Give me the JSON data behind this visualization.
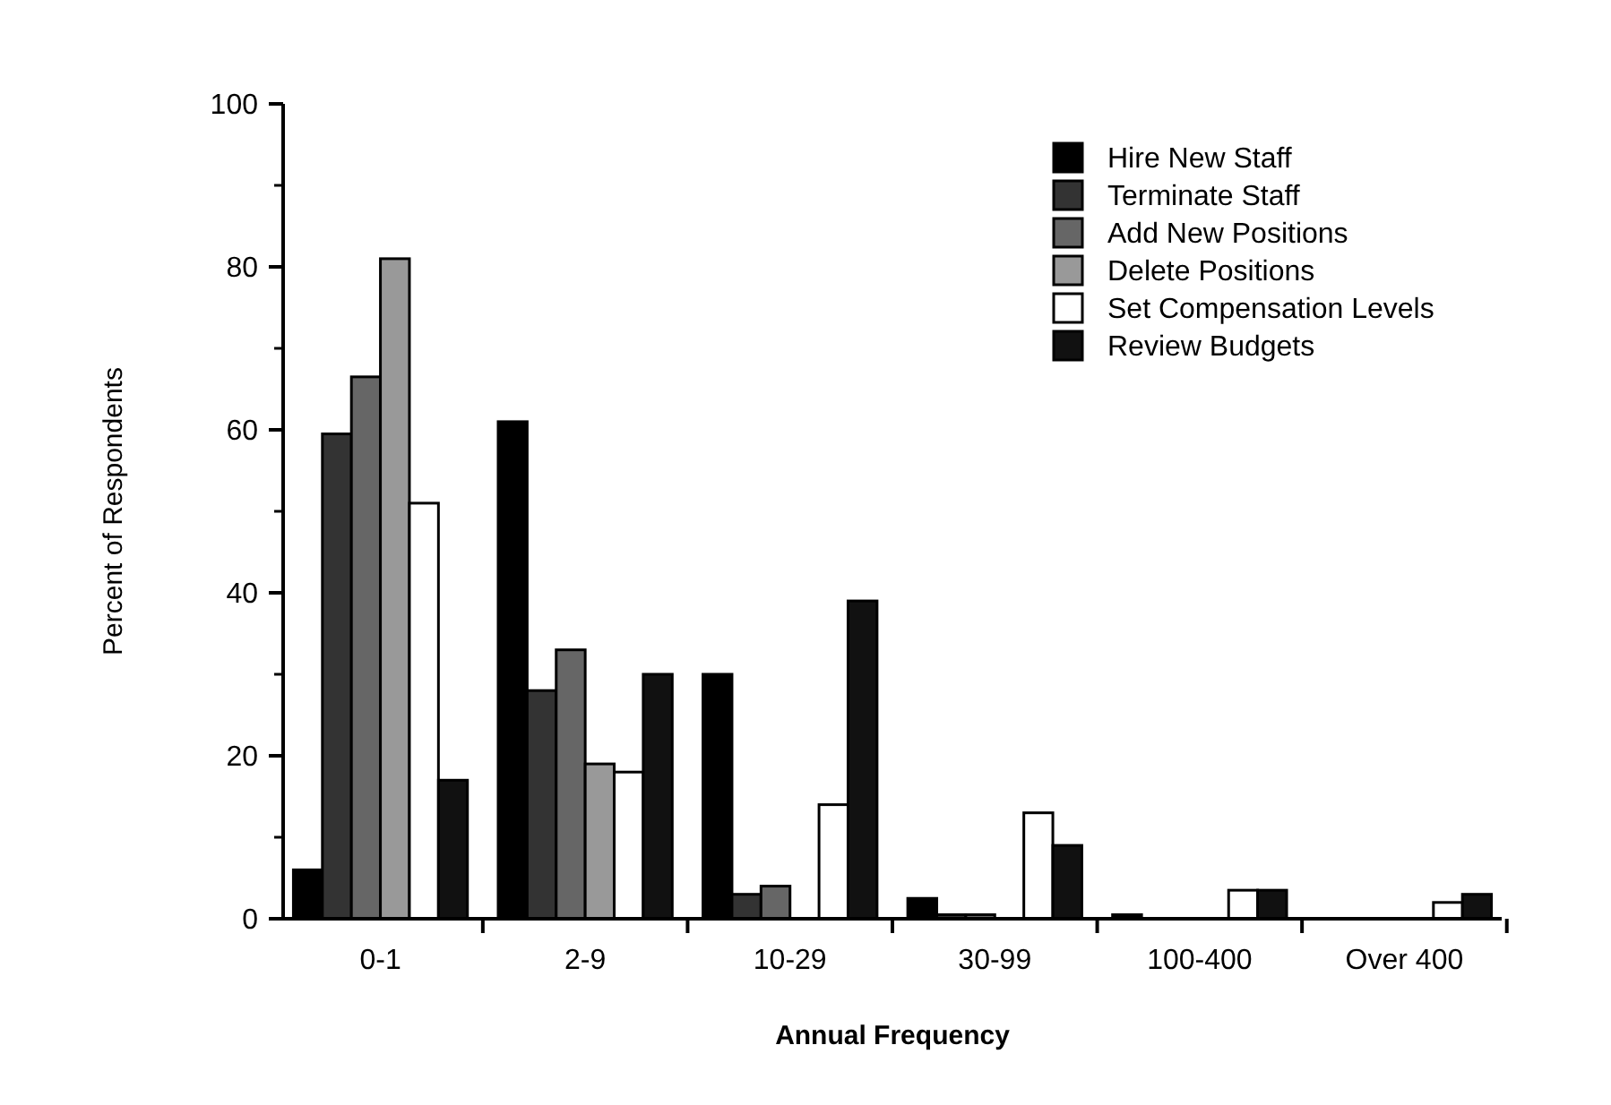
{
  "chart_data": {
    "type": "bar",
    "xlabel": "Annual Frequency",
    "ylabel": "Percent of Respondents",
    "categories": [
      "0-1",
      "2-9",
      "10-29",
      "30-99",
      "100-400",
      "Over 400"
    ],
    "series": [
      {
        "name": "Hire New  Staff",
        "color": "#000000",
        "values": [
          6,
          61,
          30,
          2.5,
          0.5,
          0
        ]
      },
      {
        "name": "Terminate Staff",
        "color": "#333333",
        "values": [
          59.5,
          28,
          3,
          0.5,
          0,
          0
        ]
      },
      {
        "name": "Add New Positions",
        "color": "#666666",
        "values": [
          66.5,
          33,
          4,
          0.5,
          0,
          0
        ]
      },
      {
        "name": "Delete Positions",
        "color": "#999999",
        "values": [
          81,
          19,
          0,
          0,
          0,
          0
        ]
      },
      {
        "name": "Set Compensation Levels",
        "color": "#ffffff",
        "values": [
          51,
          18,
          14,
          13,
          3.5,
          2
        ]
      },
      {
        "name": "Review   Budgets",
        "color": "#111111",
        "values": [
          17,
          30,
          39,
          9,
          3.5,
          3
        ]
      }
    ],
    "ylim": [
      0,
      100
    ],
    "yticks": [
      0,
      20,
      40,
      60,
      80,
      100
    ],
    "legend": "top right"
  }
}
